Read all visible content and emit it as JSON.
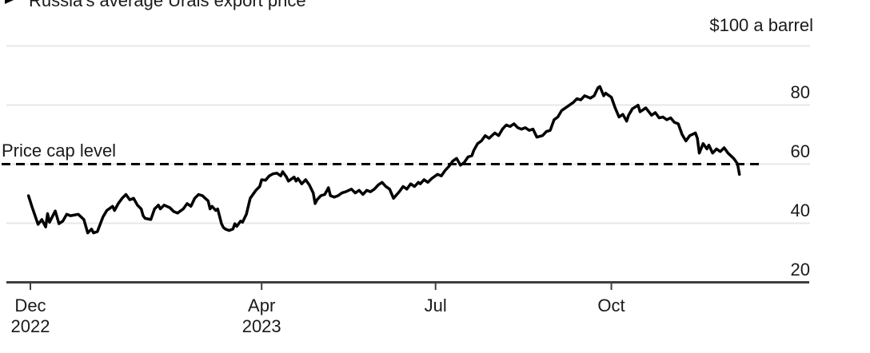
{
  "page": {
    "background": "#ffffff"
  },
  "header": {
    "title": "Russia's average Urals export price"
  },
  "colors": {
    "series_line": "#000000",
    "grid_line": "#e7e7e7",
    "axis_line": "#3f3f3f",
    "text": "#1a1a1a",
    "reference_line": "#000000"
  },
  "chart_data": {
    "type": "line",
    "title": "Russia's average Urals export price",
    "y_axis": {
      "top_label": "$100 a barrel",
      "tick_labels_top_to_bottom": [
        "80",
        "60",
        "40",
        "20"
      ],
      "tick_values": [
        100,
        80,
        60,
        40
      ],
      "min": 20,
      "max": 105,
      "grid": true
    },
    "x_axis": {
      "day_zero": "Dec 1 2022",
      "ticks": [
        {
          "label": "Dec",
          "sublabel": "2022",
          "day": 0
        },
        {
          "label": "Apr",
          "sublabel": "2023",
          "day": 121
        },
        {
          "label": "Jul",
          "sublabel": "",
          "day": 212
        },
        {
          "label": "Oct",
          "sublabel": "",
          "day": 304
        }
      ]
    },
    "reference_line": {
      "label": "Price cap level",
      "value": 60,
      "style": "dashed",
      "color": "#000000"
    },
    "legend_position": "top-left",
    "series": [
      {
        "name": "Russia's average Urals export price",
        "color": "#000000",
        "unit": "$ a barrel",
        "points_day_value": [
          [
            -1,
            49.2
          ],
          [
            1,
            45.1
          ],
          [
            4,
            39.5
          ],
          [
            6,
            41.1
          ],
          [
            8,
            38.6
          ],
          [
            9,
            43.1
          ],
          [
            10,
            40.2
          ],
          [
            13,
            44
          ],
          [
            15,
            39.7
          ],
          [
            17,
            40.6
          ],
          [
            19,
            42.9
          ],
          [
            21,
            42.4
          ],
          [
            25,
            42.9
          ],
          [
            28,
            41.1
          ],
          [
            30,
            36.6
          ],
          [
            32,
            37.9
          ],
          [
            33,
            36.6
          ],
          [
            35,
            37
          ],
          [
            38,
            42
          ],
          [
            40,
            44.2
          ],
          [
            43,
            45.6
          ],
          [
            44,
            44.2
          ],
          [
            46,
            46.5
          ],
          [
            48,
            48.3
          ],
          [
            50,
            49.6
          ],
          [
            52,
            47.8
          ],
          [
            54,
            48.3
          ],
          [
            56,
            46
          ],
          [
            58,
            44.7
          ],
          [
            59,
            42.4
          ],
          [
            60,
            41.5
          ],
          [
            63,
            41.1
          ],
          [
            65,
            44.7
          ],
          [
            67,
            46
          ],
          [
            68,
            44.7
          ],
          [
            70,
            46
          ],
          [
            73,
            45.1
          ],
          [
            75,
            43.8
          ],
          [
            77,
            43.3
          ],
          [
            80,
            44.7
          ],
          [
            82,
            46.5
          ],
          [
            84,
            45.6
          ],
          [
            86,
            48.3
          ],
          [
            88,
            49.6
          ],
          [
            90,
            49.2
          ],
          [
            93,
            47.4
          ],
          [
            94,
            44.7
          ],
          [
            95,
            45.6
          ],
          [
            97,
            44.2
          ],
          [
            98,
            44.7
          ],
          [
            100,
            39.7
          ],
          [
            101,
            38.4
          ],
          [
            102,
            37.9
          ],
          [
            104,
            37.4
          ],
          [
            106,
            37.9
          ],
          [
            107,
            39.7
          ],
          [
            108,
            38.8
          ],
          [
            110,
            40.6
          ],
          [
            111,
            40.2
          ],
          [
            113,
            42.9
          ],
          [
            114,
            45.6
          ],
          [
            115,
            48.3
          ],
          [
            118,
            51
          ],
          [
            120,
            52.3
          ],
          [
            121,
            54.6
          ],
          [
            123,
            54.4
          ],
          [
            125,
            55.9
          ],
          [
            127,
            56.6
          ],
          [
            129,
            56.8
          ],
          [
            131,
            55.9
          ],
          [
            132,
            57.3
          ],
          [
            134,
            55.5
          ],
          [
            135,
            54.1
          ],
          [
            138,
            55.5
          ],
          [
            139,
            54.1
          ],
          [
            140,
            55
          ],
          [
            142,
            53.2
          ],
          [
            144,
            54.6
          ],
          [
            146,
            52.8
          ],
          [
            148,
            50.1
          ],
          [
            149,
            46.5
          ],
          [
            150,
            47.8
          ],
          [
            152,
            49.2
          ],
          [
            154,
            49.6
          ],
          [
            156,
            51.9
          ],
          [
            157,
            49.2
          ],
          [
            159,
            48.7
          ],
          [
            161,
            49.2
          ],
          [
            163,
            50.1
          ],
          [
            165,
            50.5
          ],
          [
            168,
            51.4
          ],
          [
            170,
            50.1
          ],
          [
            172,
            51
          ],
          [
            174,
            49.6
          ],
          [
            176,
            51
          ],
          [
            178,
            50.5
          ],
          [
            180,
            51.4
          ],
          [
            182,
            52.8
          ],
          [
            184,
            53.7
          ],
          [
            186,
            52.3
          ],
          [
            188,
            51.4
          ],
          [
            190,
            48.3
          ],
          [
            193,
            50.5
          ],
          [
            195,
            52.3
          ],
          [
            197,
            51.4
          ],
          [
            199,
            53.2
          ],
          [
            201,
            52.3
          ],
          [
            203,
            53.7
          ],
          [
            204,
            53.2
          ],
          [
            206,
            54.6
          ],
          [
            208,
            53.7
          ],
          [
            210,
            55
          ],
          [
            213,
            56.4
          ],
          [
            215,
            55.9
          ],
          [
            217,
            57.7
          ],
          [
            219,
            59.1
          ],
          [
            221,
            60.9
          ],
          [
            223,
            61.8
          ],
          [
            225,
            59.5
          ],
          [
            227,
            60.4
          ],
          [
            229,
            62.3
          ],
          [
            231,
            62.7
          ],
          [
            232,
            64.5
          ],
          [
            234,
            66.8
          ],
          [
            236,
            67.7
          ],
          [
            238,
            69.5
          ],
          [
            240,
            68.6
          ],
          [
            243,
            70.4
          ],
          [
            245,
            69.5
          ],
          [
            247,
            71.7
          ],
          [
            249,
            73.1
          ],
          [
            251,
            72.6
          ],
          [
            253,
            73.5
          ],
          [
            255,
            72.2
          ],
          [
            257,
            71.7
          ],
          [
            259,
            72.2
          ],
          [
            261,
            71.3
          ],
          [
            263,
            71.7
          ],
          [
            265,
            69
          ],
          [
            268,
            69.5
          ],
          [
            270,
            70.9
          ],
          [
            272,
            71.3
          ],
          [
            274,
            74.9
          ],
          [
            276,
            75.8
          ],
          [
            278,
            78
          ],
          [
            280,
            78.9
          ],
          [
            282,
            79.8
          ],
          [
            284,
            80.7
          ],
          [
            286,
            82
          ],
          [
            288,
            81.6
          ],
          [
            290,
            83
          ],
          [
            293,
            82.2
          ],
          [
            295,
            83
          ],
          [
            297,
            85.7
          ],
          [
            298,
            86.1
          ],
          [
            300,
            83
          ],
          [
            301,
            83.9
          ],
          [
            302,
            83.4
          ],
          [
            304,
            82.5
          ],
          [
            306,
            78.9
          ],
          [
            308,
            75.8
          ],
          [
            310,
            76.7
          ],
          [
            312,
            74.4
          ],
          [
            313,
            76.4
          ],
          [
            315,
            78.6
          ],
          [
            318,
            79.8
          ],
          [
            319,
            77.6
          ],
          [
            320,
            78
          ],
          [
            322,
            78.9
          ],
          [
            325,
            76.4
          ],
          [
            327,
            77.3
          ],
          [
            329,
            75.5
          ],
          [
            331,
            75.8
          ],
          [
            333,
            74.9
          ],
          [
            335,
            75.5
          ],
          [
            337,
            74
          ],
          [
            339,
            73.5
          ],
          [
            341,
            69.9
          ],
          [
            343,
            67.7
          ],
          [
            345,
            69.5
          ],
          [
            348,
            70.4
          ],
          [
            349,
            68.6
          ],
          [
            350,
            63.6
          ],
          [
            352,
            66.8
          ],
          [
            354,
            65
          ],
          [
            355,
            66.3
          ],
          [
            357,
            63.6
          ],
          [
            359,
            65
          ],
          [
            361,
            64.1
          ],
          [
            363,
            65.4
          ],
          [
            365,
            63.6
          ],
          [
            368,
            61.8
          ],
          [
            370,
            60
          ],
          [
            371,
            56.4
          ]
        ]
      }
    ]
  }
}
